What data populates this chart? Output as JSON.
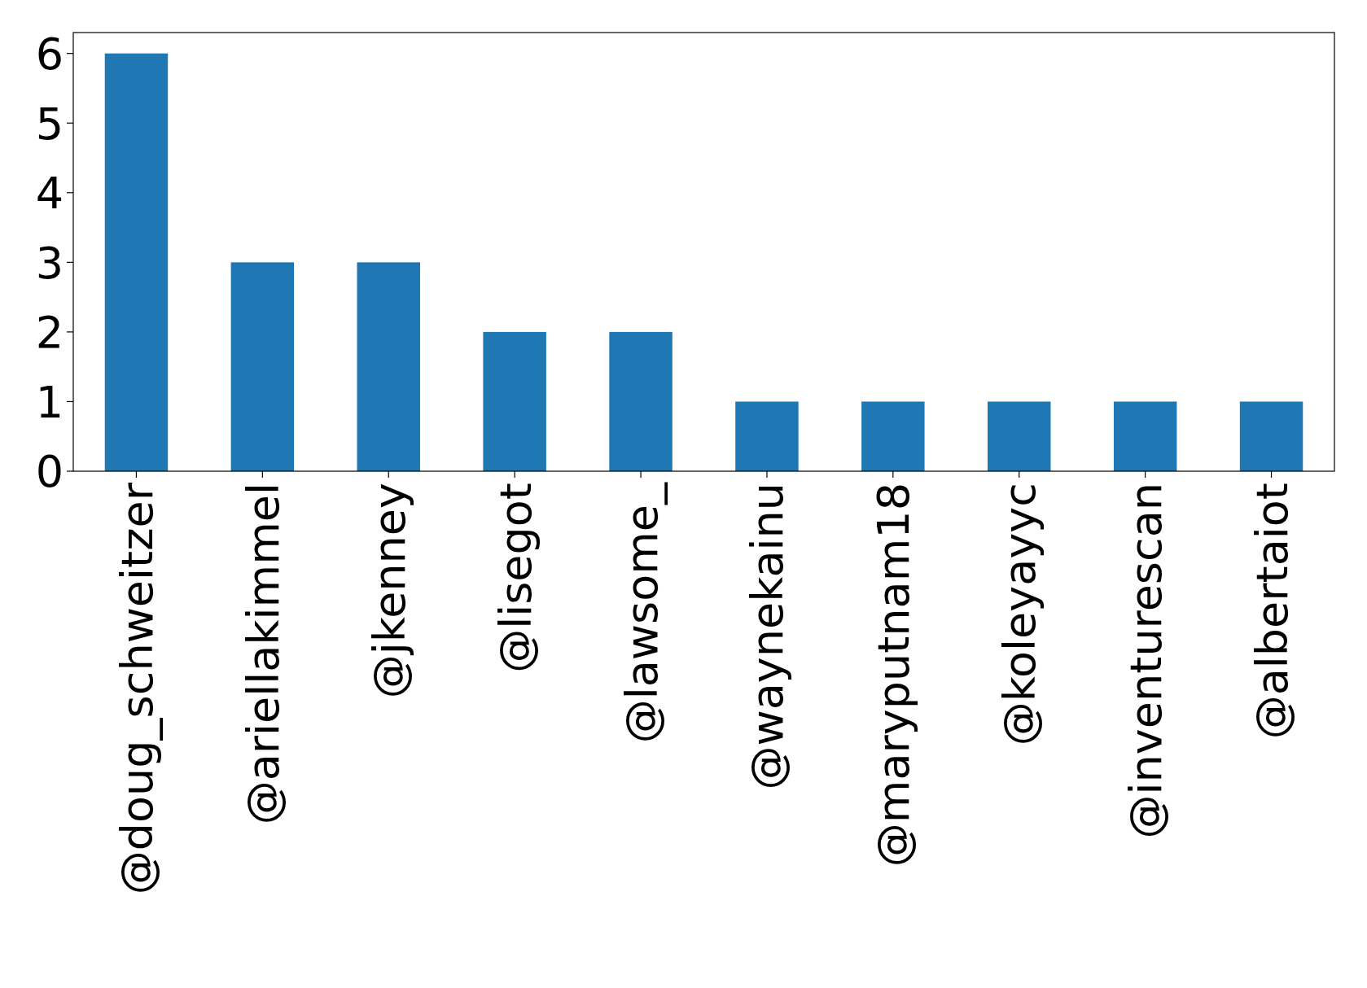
{
  "chart_data": {
    "type": "bar",
    "categories": [
      "@doug_schweitzer",
      "@ariellakimmel",
      "@jkenney",
      "@lisegot",
      "@lawsome_",
      "@waynekainu",
      "@maryputnam18",
      "@koleyayyc",
      "@inventurescan",
      "@albertaiot"
    ],
    "values": [
      6,
      3,
      3,
      2,
      2,
      1,
      1,
      1,
      1,
      1
    ],
    "color": "#1f77b4",
    "ylim": [
      0,
      6.3
    ],
    "yticks": [
      0,
      1,
      2,
      3,
      4,
      5,
      6
    ],
    "grid": false
  }
}
